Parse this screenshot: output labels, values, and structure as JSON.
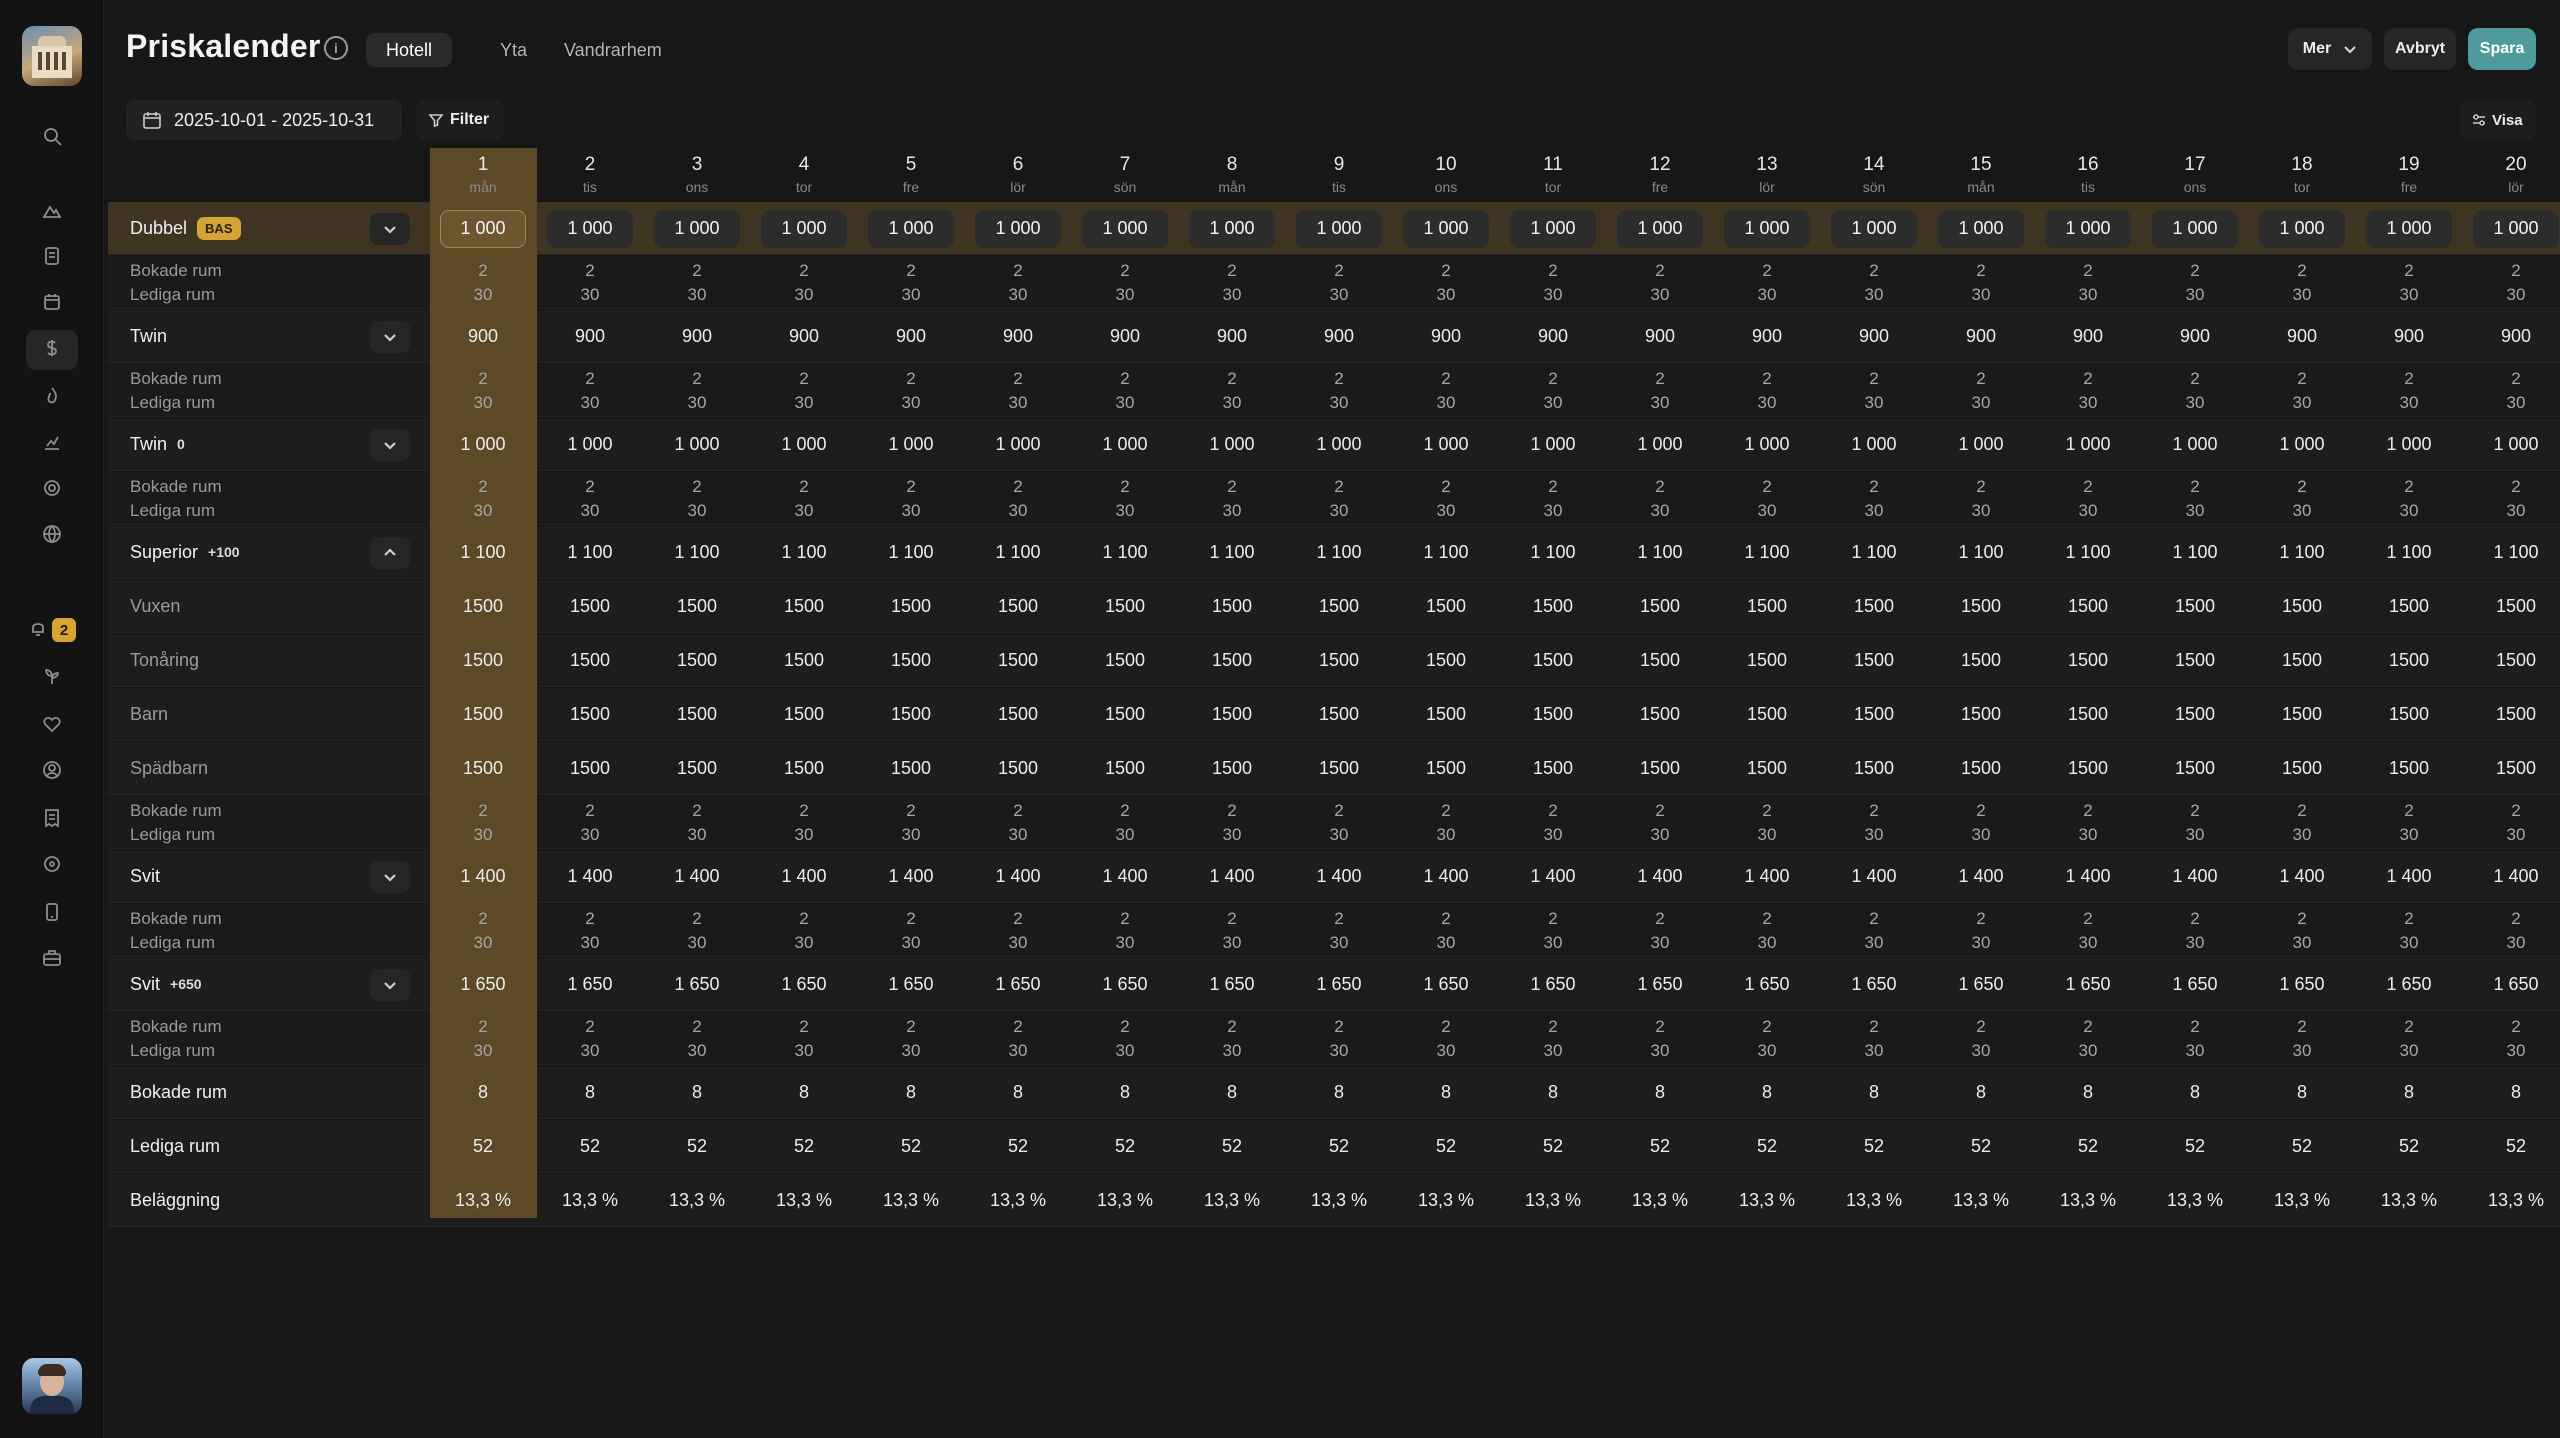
{
  "app": {
    "title": "Priskalender",
    "tabs": [
      {
        "label": "Hotell",
        "active": true
      },
      {
        "label": "Yta",
        "active": false
      },
      {
        "label": "Vandrarhem",
        "active": false
      }
    ],
    "actions": {
      "more": "Mer",
      "cancel": "Avbryt",
      "save": "Spara"
    },
    "date_range": "2025-10-01 - 2025-10-31",
    "filter_label": "Filter",
    "view_label": "Visa",
    "notification_count": "2",
    "accent_color": "#4f9a9a",
    "highlight_color": "#5c4a26",
    "badge_color": "#d4a437"
  },
  "sidebar_icons": [
    "search-icon",
    "mountain-icon",
    "document-icon",
    "calendar-icon",
    "dollar-icon",
    "flame-icon",
    "chart-icon",
    "gear-icon",
    "globe-icon",
    "bell-icon",
    "plant-icon",
    "heart-icon",
    "user-icon",
    "receipt-icon",
    "settings-icon",
    "phone-icon",
    "briefcase-icon"
  ],
  "days": [
    {
      "n": "1",
      "wd": "mån"
    },
    {
      "n": "2",
      "wd": "tis"
    },
    {
      "n": "3",
      "wd": "ons"
    },
    {
      "n": "4",
      "wd": "tor"
    },
    {
      "n": "5",
      "wd": "fre"
    },
    {
      "n": "6",
      "wd": "lör"
    },
    {
      "n": "7",
      "wd": "sön"
    },
    {
      "n": "8",
      "wd": "mån"
    },
    {
      "n": "9",
      "wd": "tis"
    },
    {
      "n": "10",
      "wd": "ons"
    },
    {
      "n": "11",
      "wd": "tor"
    },
    {
      "n": "12",
      "wd": "fre"
    },
    {
      "n": "13",
      "wd": "lör"
    },
    {
      "n": "14",
      "wd": "sön"
    },
    {
      "n": "15",
      "wd": "mån"
    },
    {
      "n": "16",
      "wd": "tis"
    },
    {
      "n": "17",
      "wd": "ons"
    },
    {
      "n": "18",
      "wd": "tor"
    },
    {
      "n": "19",
      "wd": "fre"
    },
    {
      "n": "20",
      "wd": "lör"
    }
  ],
  "rows": [
    {
      "kind": "room",
      "label": "Dubbel",
      "badge": "BAS",
      "badge_style": "bas",
      "value": "1 000",
      "chev": "down",
      "buttons": true
    },
    {
      "kind": "stack",
      "top_label": "Bokade rum",
      "bottom_label": "Lediga rum",
      "top": "2",
      "bottom": "30"
    },
    {
      "kind": "room",
      "label": "Twin",
      "badge": "",
      "value": "900",
      "chev": "down"
    },
    {
      "kind": "stack",
      "top_label": "Bokade rum",
      "bottom_label": "Lediga rum",
      "top": "2",
      "bottom": "30"
    },
    {
      "kind": "room",
      "label": "Twin",
      "badge": "0",
      "badge_style": "plain",
      "value": "1 000",
      "chev": "down"
    },
    {
      "kind": "stack",
      "top_label": "Bokade rum",
      "bottom_label": "Lediga rum",
      "top": "2",
      "bottom": "30"
    },
    {
      "kind": "room",
      "label": "Superior",
      "badge": "+100",
      "badge_style": "plain",
      "value": "1 100",
      "chev": "up"
    },
    {
      "kind": "age",
      "label": "Vuxen",
      "value": "1500"
    },
    {
      "kind": "age",
      "label": "Tonåring",
      "value": "1500"
    },
    {
      "kind": "age",
      "label": "Barn",
      "value": "1500"
    },
    {
      "kind": "age",
      "label": "Spädbarn",
      "value": "1500"
    },
    {
      "kind": "stack",
      "top_label": "Bokade rum",
      "bottom_label": "Lediga rum",
      "top": "2",
      "bottom": "30"
    },
    {
      "kind": "room",
      "label": "Svit",
      "badge": "",
      "value": "1 400",
      "chev": "down"
    },
    {
      "kind": "stack",
      "top_label": "Bokade rum",
      "bottom_label": "Lediga rum",
      "top": "2",
      "bottom": "30"
    },
    {
      "kind": "room",
      "label": "Svit",
      "badge": "+650",
      "badge_style": "plain",
      "value": "1 650",
      "chev": "down"
    },
    {
      "kind": "stack",
      "top_label": "Bokade rum",
      "bottom_label": "Lediga rum",
      "top": "2",
      "bottom": "30"
    },
    {
      "kind": "total",
      "label": "Bokade rum",
      "value": "8"
    },
    {
      "kind": "total",
      "label": "Lediga rum",
      "value": "52"
    },
    {
      "kind": "total",
      "label": "Beläggning",
      "value": "13,3 %"
    }
  ]
}
